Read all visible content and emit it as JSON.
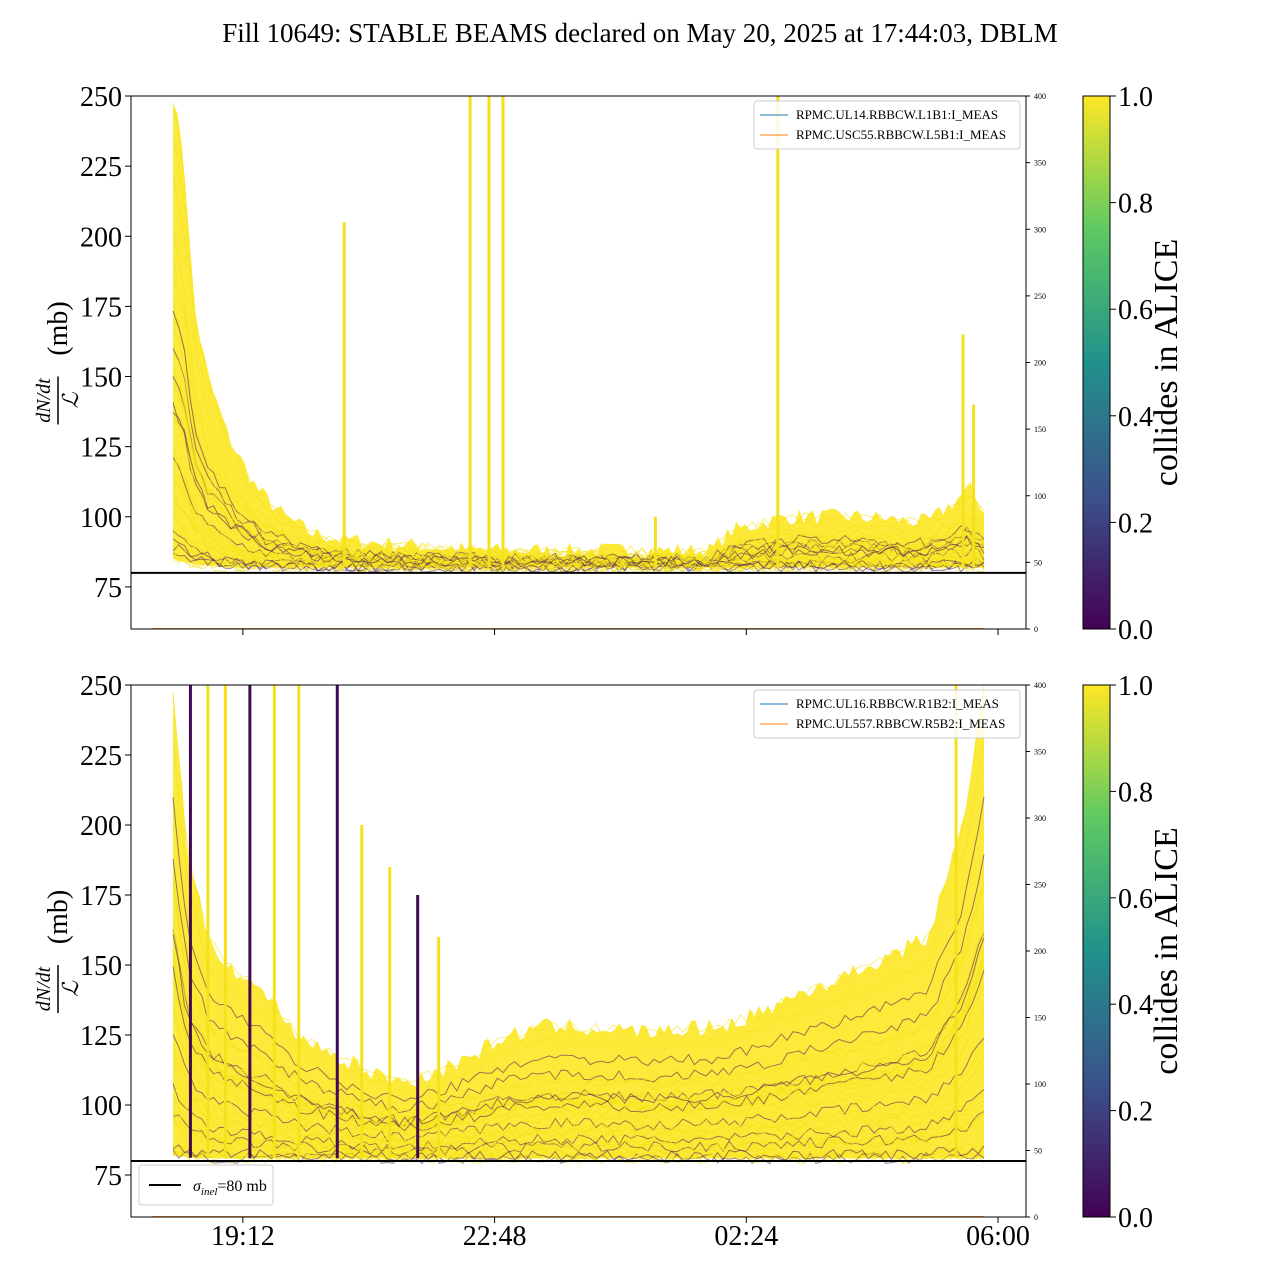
{
  "title": "Fill 10649: STABLE BEAMS declared on May 20, 2025 at 17:44:03, DBLM",
  "colormap": {
    "label": "collides in ALICE",
    "ticks": [
      "0.0",
      "0.2",
      "0.4",
      "0.6",
      "0.8",
      "1.0"
    ],
    "stops": [
      "#440154",
      "#3b528b",
      "#21918c",
      "#5ec962",
      "#fde725"
    ]
  },
  "chart_data": [
    {
      "type": "line",
      "panel": "top",
      "ylabel": "dN/dt / ℒ (mb)",
      "ylabel_num": "dN/dt",
      "ylabel_den": "ℒ",
      "ylabel_unit": "(mb)",
      "ylim": [
        60,
        250
      ],
      "yticks": [
        75,
        100,
        125,
        150,
        175,
        200,
        225,
        250
      ],
      "y2lim": [
        0,
        400
      ],
      "y2ticks": [
        0,
        50,
        100,
        150,
        200,
        250,
        300,
        350,
        400
      ],
      "xlim_hours": [
        17.6,
        30.4
      ],
      "xticks": [
        {
          "value": 19.2,
          "label": "19:12"
        },
        {
          "value": 22.8,
          "label": "22:48"
        },
        {
          "value": 26.4,
          "label": "02:24"
        },
        {
          "value": 30.0,
          "label": "06:00"
        }
      ],
      "hline": {
        "y": 80,
        "color": "#000000"
      },
      "legend": {
        "position": "top-right",
        "entries": [
          {
            "label": "RPMC.UL14.RBBCW.L1B1:I_MEAS",
            "color": "#1f77b4"
          },
          {
            "label": "RPMC.USC55.RBBCW.L5B1:I_MEAS",
            "color": "#ff7f0e"
          }
        ]
      },
      "series": [
        {
          "name": "envelope_upper",
          "x": [
            18.2,
            18.35,
            18.5,
            18.7,
            19.0,
            19.4,
            19.8,
            20.2,
            20.6,
            21.0,
            21.5,
            22.0,
            22.6,
            23.2,
            24.0,
            25.0,
            25.9,
            26.2,
            26.5,
            27.0,
            28.0,
            29.0,
            29.6,
            29.8
          ],
          "y": [
            250,
            230,
            175,
            150,
            128,
            110,
            100,
            94,
            92,
            91,
            90,
            89,
            88,
            88,
            88,
            88,
            88,
            95,
            97,
            100,
            100,
            98,
            110,
            102
          ]
        },
        {
          "name": "envelope_lower",
          "x": [
            18.2,
            18.5,
            19.0,
            19.5,
            20.0,
            21.0,
            22.0,
            23.0,
            24.0,
            25.0,
            26.0,
            27.0,
            28.0,
            29.0,
            29.8
          ],
          "y": [
            85,
            83,
            82,
            82,
            82,
            82,
            82,
            82,
            82,
            82,
            82,
            82,
            82,
            82,
            82
          ]
        },
        {
          "name": "spikes",
          "x": [
            20.65,
            22.45,
            22.72,
            22.92,
            25.1,
            26.85,
            29.5,
            29.65
          ],
          "y": [
            205,
            250,
            250,
            250,
            100,
            250,
            165,
            140
          ]
        }
      ]
    },
    {
      "type": "line",
      "panel": "bottom",
      "ylabel": "dN/dt / ℒ (mb)",
      "ylabel_num": "dN/dt",
      "ylabel_den": "ℒ",
      "ylabel_unit": "(mb)",
      "ylim": [
        60,
        250
      ],
      "yticks": [
        75,
        100,
        125,
        150,
        175,
        200,
        225,
        250
      ],
      "y2lim": [
        0,
        400
      ],
      "y2ticks": [
        0,
        50,
        100,
        150,
        200,
        250,
        300,
        350,
        400
      ],
      "xlim_hours": [
        17.6,
        30.4
      ],
      "xticks": [
        {
          "value": 19.2,
          "label": "19:12"
        },
        {
          "value": 22.8,
          "label": "22:48"
        },
        {
          "value": 26.4,
          "label": "02:24"
        },
        {
          "value": 30.0,
          "label": "06:00"
        }
      ],
      "hline": {
        "y": 80,
        "color": "#000000"
      },
      "legend": {
        "position": "top-right",
        "entries": [
          {
            "label": "RPMC.UL16.RBBCW.R1B2:I_MEAS",
            "color": "#1f77b4"
          },
          {
            "label": "RPMC.UL557.RBBCW.R5B2:I_MEAS",
            "color": "#ff7f0e"
          }
        ]
      },
      "legend2": {
        "position": "bottom-left",
        "entries": [
          {
            "symbol": "σ",
            "sub": "inel",
            "value": "=80 mb",
            "color": "#000000"
          }
        ]
      },
      "series": [
        {
          "name": "envelope_upper",
          "x": [
            18.2,
            18.4,
            18.7,
            19.0,
            19.5,
            20.0,
            20.5,
            21.0,
            21.5,
            22.0,
            22.5,
            23.0,
            23.5,
            24.0,
            25.0,
            26.0,
            26.5,
            27.0,
            28.0,
            29.0,
            29.5,
            29.8
          ],
          "y": [
            250,
            190,
            160,
            150,
            140,
            125,
            118,
            112,
            108,
            112,
            118,
            125,
            128,
            128,
            126,
            128,
            132,
            138,
            148,
            160,
            200,
            250
          ]
        },
        {
          "name": "envelope_lower",
          "x": [
            18.2,
            18.5,
            19.0,
            20.0,
            21.0,
            22.0,
            23.0,
            24.0,
            25.0,
            26.0,
            27.0,
            28.0,
            29.0,
            29.8
          ],
          "y": [
            82,
            81,
            81,
            81,
            81,
            81,
            81,
            81,
            81,
            81,
            81,
            81,
            81,
            81
          ]
        },
        {
          "name": "spikes",
          "x": [
            18.45,
            18.7,
            18.95,
            19.3,
            19.65,
            20.0,
            20.55,
            20.9,
            21.3,
            21.7,
            22.0,
            29.4
          ],
          "y": [
            250,
            250,
            250,
            250,
            250,
            250,
            250,
            200,
            185,
            175,
            160,
            250
          ]
        }
      ]
    }
  ]
}
